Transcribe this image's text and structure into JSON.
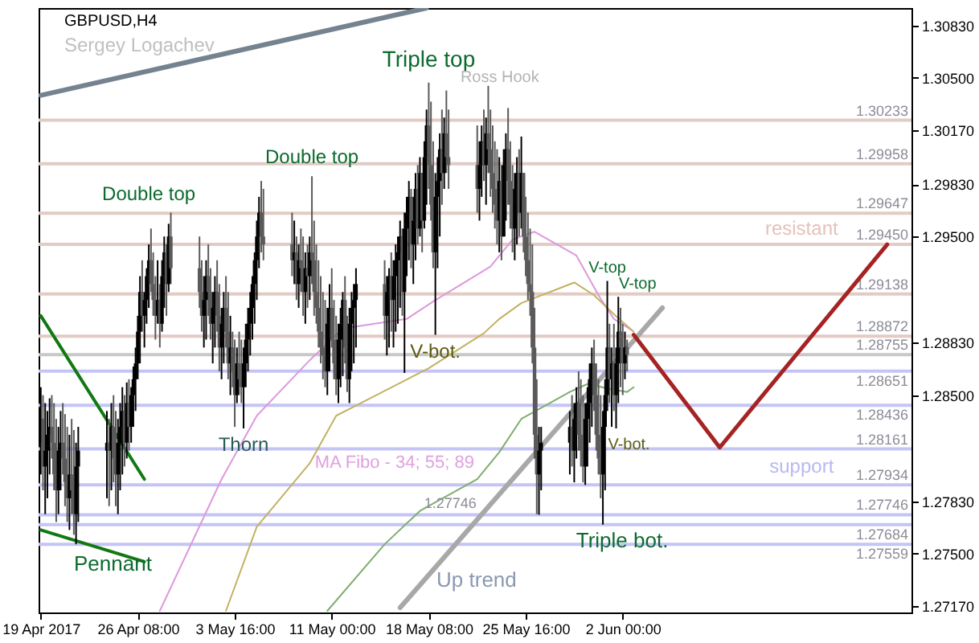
{
  "chart_data": {
    "type": "candlestick",
    "title": "GBPUSD,H4",
    "subtitle": "Sergey Logachev",
    "xlim": [
      "2017-04-18T20:00",
      "2017-06-23T20:00"
    ],
    "xticks": [
      {
        "value": "2017-04-19T00:00",
        "label": "19 Apr 2017"
      },
      {
        "value": "2017-04-26T08:00",
        "label": "26 Apr 08:00"
      },
      {
        "value": "2017-05-03T16:00",
        "label": "3 May 16:00"
      },
      {
        "value": "2017-05-11T00:00",
        "label": "11 May 00:00"
      },
      {
        "value": "2017-05-18T08:00",
        "label": "18 May 08:00"
      },
      {
        "value": "2017-05-25T16:00",
        "label": "25 May 16:00"
      },
      {
        "value": "2017-06-02T00:00",
        "label": "2 Jun 00:00"
      }
    ],
    "ylim": [
      1.2713,
      1.3094
    ],
    "yticks": [
      {
        "value": 1.3083,
        "label": "1.30830"
      },
      {
        "value": 1.305,
        "label": "1.30500"
      },
      {
        "value": 1.3017,
        "label": "1.30170"
      },
      {
        "value": 1.2983,
        "label": "1.29830"
      },
      {
        "value": 1.295,
        "label": "1.29500"
      },
      {
        "value": 1.2883,
        "label": "1.28830"
      },
      {
        "value": 1.285,
        "label": "1.28500"
      },
      {
        "value": 1.2783,
        "label": "1.27830"
      },
      {
        "value": 1.275,
        "label": "1.27500"
      },
      {
        "value": 1.2717,
        "label": "1.27170"
      }
    ],
    "x": [
      "2017-04-19T00:00",
      "2017-04-19T04:00",
      "2017-04-19T08:00",
      "2017-04-19T12:00",
      "2017-04-19T16:00",
      "2017-04-19T20:00",
      "2017-04-20T00:00",
      "2017-04-20T04:00",
      "2017-04-20T08:00",
      "2017-04-20T12:00",
      "2017-04-20T16:00",
      "2017-04-20T20:00",
      "2017-04-21T00:00",
      "2017-04-21T04:00",
      "2017-04-21T08:00",
      "2017-04-21T12:00",
      "2017-04-21T16:00",
      "2017-04-21T20:00",
      "2017-04-24T00:00",
      "2017-04-24T04:00",
      "2017-04-24T08:00",
      "2017-04-24T12:00",
      "2017-04-24T16:00",
      "2017-04-24T20:00",
      "2017-04-25T00:00",
      "2017-04-25T04:00",
      "2017-04-25T08:00",
      "2017-04-25T12:00",
      "2017-04-25T16:00",
      "2017-04-25T20:00",
      "2017-04-26T00:00",
      "2017-04-26T04:00",
      "2017-04-26T08:00",
      "2017-04-26T12:00",
      "2017-04-26T16:00",
      "2017-04-26T20:00",
      "2017-04-27T00:00",
      "2017-04-27T04:00",
      "2017-04-27T08:00",
      "2017-04-27T12:00",
      "2017-04-27T16:00",
      "2017-04-27T20:00",
      "2017-04-28T00:00",
      "2017-04-28T04:00",
      "2017-04-28T08:00",
      "2017-04-28T12:00",
      "2017-04-28T16:00",
      "2017-04-28T20:00",
      "2017-05-01T00:00",
      "2017-05-01T04:00",
      "2017-05-01T08:00",
      "2017-05-01T12:00",
      "2017-05-01T16:00",
      "2017-05-01T20:00",
      "2017-05-02T00:00",
      "2017-05-02T04:00",
      "2017-05-02T08:00",
      "2017-05-02T12:00",
      "2017-05-02T16:00",
      "2017-05-02T20:00",
      "2017-05-03T00:00",
      "2017-05-03T04:00",
      "2017-05-03T08:00",
      "2017-05-03T12:00",
      "2017-05-03T16:00",
      "2017-05-03T20:00",
      "2017-05-04T00:00",
      "2017-05-04T04:00",
      "2017-05-04T08:00",
      "2017-05-04T12:00",
      "2017-05-04T16:00",
      "2017-05-04T20:00",
      "2017-05-05T00:00",
      "2017-05-05T04:00",
      "2017-05-05T08:00",
      "2017-05-05T12:00",
      "2017-05-05T16:00",
      "2017-05-05T20:00",
      "2017-05-08T00:00",
      "2017-05-08T04:00",
      "2017-05-08T08:00",
      "2017-05-08T12:00",
      "2017-05-08T16:00",
      "2017-05-08T20:00",
      "2017-05-09T00:00",
      "2017-05-09T04:00",
      "2017-05-09T08:00",
      "2017-05-09T12:00",
      "2017-05-09T16:00",
      "2017-05-09T20:00",
      "2017-05-10T00:00",
      "2017-05-10T04:00",
      "2017-05-10T08:00",
      "2017-05-10T12:00",
      "2017-05-10T16:00",
      "2017-05-10T20:00",
      "2017-05-11T00:00",
      "2017-05-11T04:00",
      "2017-05-11T08:00",
      "2017-05-11T12:00",
      "2017-05-11T16:00",
      "2017-05-11T20:00",
      "2017-05-12T00:00",
      "2017-05-12T04:00",
      "2017-05-12T08:00",
      "2017-05-12T12:00",
      "2017-05-12T16:00",
      "2017-05-12T20:00",
      "2017-05-15T00:00",
      "2017-05-15T04:00",
      "2017-05-15T08:00",
      "2017-05-15T12:00",
      "2017-05-15T16:00",
      "2017-05-15T20:00",
      "2017-05-16T00:00",
      "2017-05-16T04:00",
      "2017-05-16T08:00",
      "2017-05-16T12:00",
      "2017-05-16T16:00",
      "2017-05-16T20:00",
      "2017-05-17T00:00",
      "2017-05-17T04:00",
      "2017-05-17T08:00",
      "2017-05-17T12:00",
      "2017-05-17T16:00",
      "2017-05-17T20:00",
      "2017-05-18T00:00",
      "2017-05-18T04:00",
      "2017-05-18T08:00",
      "2017-05-18T12:00",
      "2017-05-18T16:00",
      "2017-05-18T20:00",
      "2017-05-19T00:00",
      "2017-05-19T04:00",
      "2017-05-19T08:00",
      "2017-05-19T12:00",
      "2017-05-19T16:00",
      "2017-05-19T20:00",
      "2017-05-22T00:00",
      "2017-05-22T04:00",
      "2017-05-22T08:00",
      "2017-05-22T12:00",
      "2017-05-22T16:00",
      "2017-05-22T20:00",
      "2017-05-23T00:00",
      "2017-05-23T04:00",
      "2017-05-23T08:00",
      "2017-05-23T12:00",
      "2017-05-23T16:00",
      "2017-05-23T20:00",
      "2017-05-24T00:00",
      "2017-05-24T04:00",
      "2017-05-24T08:00",
      "2017-05-24T12:00",
      "2017-05-24T16:00",
      "2017-05-24T20:00",
      "2017-05-25T00:00",
      "2017-05-25T04:00",
      "2017-05-25T08:00",
      "2017-05-25T12:00",
      "2017-05-25T16:00",
      "2017-05-25T20:00",
      "2017-05-26T00:00",
      "2017-05-26T04:00",
      "2017-05-26T08:00",
      "2017-05-26T12:00",
      "2017-05-26T16:00",
      "2017-05-26T20:00",
      "2017-05-29T00:00",
      "2017-05-29T04:00",
      "2017-05-29T08:00",
      "2017-05-29T12:00",
      "2017-05-29T16:00",
      "2017-05-29T20:00",
      "2017-05-30T00:00",
      "2017-05-30T04:00",
      "2017-05-30T08:00",
      "2017-05-30T12:00",
      "2017-05-30T16:00",
      "2017-05-30T20:00",
      "2017-05-31T00:00",
      "2017-05-31T04:00",
      "2017-05-31T08:00",
      "2017-05-31T12:00",
      "2017-05-31T16:00",
      "2017-05-31T20:00",
      "2017-06-01T00:00",
      "2017-06-01T04:00",
      "2017-06-01T08:00",
      "2017-06-01T12:00",
      "2017-06-01T16:00",
      "2017-06-01T20:00",
      "2017-06-02T00:00",
      "2017-06-02T04:00",
      "2017-06-02T08:00"
    ],
    "ohlc": [
      [
        1.282,
        1.2855,
        1.28,
        1.2835
      ],
      [
        1.2835,
        1.285,
        1.279,
        1.2805
      ],
      [
        1.2805,
        1.2845,
        1.2775,
        1.2815
      ],
      [
        1.2815,
        1.284,
        1.2785,
        1.2825
      ],
      [
        1.2825,
        1.2848,
        1.28,
        1.283
      ],
      [
        1.283,
        1.285,
        1.281,
        1.282
      ],
      [
        1.282,
        1.2845,
        1.279,
        1.28
      ],
      [
        1.28,
        1.2835,
        1.277,
        1.279
      ],
      [
        1.279,
        1.283,
        1.2775,
        1.2815
      ],
      [
        1.2815,
        1.284,
        1.279,
        1.282
      ],
      [
        1.282,
        1.2845,
        1.28,
        1.281
      ],
      [
        1.281,
        1.2838,
        1.278,
        1.2795
      ],
      [
        1.2795,
        1.283,
        1.277,
        1.2785
      ],
      [
        1.2785,
        1.2825,
        1.2765,
        1.28
      ],
      [
        1.28,
        1.2835,
        1.2775,
        1.279
      ],
      [
        1.279,
        1.2828,
        1.2762,
        1.2775
      ],
      [
        1.2775,
        1.282,
        1.2756,
        1.2805
      ],
      [
        1.2805,
        1.283,
        1.277,
        1.2815
      ],
      [
        1.2815,
        1.284,
        1.2785,
        1.282
      ],
      [
        1.282,
        1.2835,
        1.278,
        1.2815
      ],
      [
        1.2815,
        1.2845,
        1.279,
        1.283
      ],
      [
        1.283,
        1.285,
        1.2795,
        1.281
      ],
      [
        1.281,
        1.284,
        1.278,
        1.28
      ],
      [
        1.28,
        1.2835,
        1.2775,
        1.282
      ],
      [
        1.282,
        1.2845,
        1.279,
        1.283
      ],
      [
        1.283,
        1.2855,
        1.28,
        1.284
      ],
      [
        1.284,
        1.285,
        1.2805,
        1.282
      ],
      [
        1.282,
        1.2858,
        1.281,
        1.2845
      ],
      [
        1.2845,
        1.286,
        1.2815,
        1.283
      ],
      [
        1.283,
        1.2855,
        1.282,
        1.285
      ],
      [
        1.285,
        1.2868,
        1.283,
        1.286
      ],
      [
        1.286,
        1.288,
        1.284,
        1.287
      ],
      [
        1.287,
        1.29,
        1.286,
        1.289
      ],
      [
        1.289,
        1.2925,
        1.287,
        1.2915
      ],
      [
        1.2915,
        1.2935,
        1.289,
        1.29
      ],
      [
        1.29,
        1.2915,
        1.288,
        1.291
      ],
      [
        1.291,
        1.293,
        1.2895,
        1.2925
      ],
      [
        1.2925,
        1.2945,
        1.2905,
        1.2935
      ],
      [
        1.2935,
        1.2955,
        1.2915,
        1.292
      ],
      [
        1.292,
        1.294,
        1.29,
        1.291
      ],
      [
        1.291,
        1.2925,
        1.2885,
        1.29
      ],
      [
        1.29,
        1.2935,
        1.2895,
        1.291
      ],
      [
        1.291,
        1.292,
        1.288,
        1.2895
      ],
      [
        1.2895,
        1.2935,
        1.289,
        1.2925
      ],
      [
        1.2925,
        1.295,
        1.2905,
        1.294
      ],
      [
        1.294,
        1.2945,
        1.29,
        1.292
      ],
      [
        1.292,
        1.2958,
        1.2915,
        1.295
      ],
      [
        1.295,
        1.2965,
        1.292,
        1.293
      ],
      [
        1.293,
        1.295,
        1.2905,
        1.2915
      ],
      [
        1.2915,
        1.2935,
        1.289,
        1.29
      ],
      [
        1.29,
        1.2925,
        1.288,
        1.291
      ],
      [
        1.291,
        1.2935,
        1.2885,
        1.2925
      ],
      [
        1.2925,
        1.2945,
        1.29,
        1.2915
      ],
      [
        1.2915,
        1.293,
        1.2885,
        1.2895
      ],
      [
        1.2895,
        1.2915,
        1.287,
        1.2905
      ],
      [
        1.2905,
        1.2925,
        1.288,
        1.2915
      ],
      [
        1.2915,
        1.2935,
        1.289,
        1.29
      ],
      [
        1.29,
        1.292,
        1.2865,
        1.288
      ],
      [
        1.288,
        1.2905,
        1.286,
        1.2895
      ],
      [
        1.2895,
        1.2915,
        1.287,
        1.2905
      ],
      [
        1.2905,
        1.2925,
        1.288,
        1.289
      ],
      [
        1.289,
        1.2915,
        1.286,
        1.287
      ],
      [
        1.287,
        1.29,
        1.285,
        1.288
      ],
      [
        1.288,
        1.289,
        1.2855,
        1.2865
      ],
      [
        1.2865,
        1.2885,
        1.283,
        1.285
      ],
      [
        1.285,
        1.288,
        1.2845,
        1.287
      ],
      [
        1.287,
        1.289,
        1.285,
        1.286
      ],
      [
        1.286,
        1.2885,
        1.2845,
        1.2855
      ],
      [
        1.2855,
        1.288,
        1.2829,
        1.287
      ],
      [
        1.287,
        1.2895,
        1.2855,
        1.2885
      ],
      [
        1.2885,
        1.2905,
        1.2865,
        1.2895
      ],
      [
        1.2895,
        1.2915,
        1.2875,
        1.2905
      ],
      [
        1.2905,
        1.2925,
        1.2885,
        1.292
      ],
      [
        1.292,
        1.294,
        1.2895,
        1.2935
      ],
      [
        1.2935,
        1.296,
        1.291,
        1.295
      ],
      [
        1.295,
        1.2975,
        1.293,
        1.2965
      ],
      [
        1.2965,
        1.2985,
        1.294,
        1.295
      ],
      [
        1.295,
        1.298,
        1.2935,
        1.2945
      ],
      [
        1.2945,
        1.2965,
        1.2925,
        1.2935
      ],
      [
        1.2935,
        1.296,
        1.292,
        1.294
      ],
      [
        1.294,
        1.295,
        1.291,
        1.292
      ],
      [
        1.292,
        1.2945,
        1.2905,
        1.2935
      ],
      [
        1.2935,
        1.2955,
        1.2915,
        1.293
      ],
      [
        1.293,
        1.295,
        1.29,
        1.2915
      ],
      [
        1.2915,
        1.294,
        1.2895,
        1.293
      ],
      [
        1.293,
        1.2945,
        1.2905,
        1.2925
      ],
      [
        1.2925,
        1.295,
        1.291,
        1.294
      ],
      [
        1.294,
        1.2988,
        1.292,
        1.2935
      ],
      [
        1.2935,
        1.296,
        1.29,
        1.2915
      ],
      [
        1.2915,
        1.2945,
        1.2895,
        1.2905
      ],
      [
        1.2905,
        1.2935,
        1.288,
        1.289
      ],
      [
        1.289,
        1.2925,
        1.287,
        1.288
      ],
      [
        1.288,
        1.2915,
        1.286,
        1.2875
      ],
      [
        1.2875,
        1.291,
        1.2855,
        1.2865
      ],
      [
        1.2865,
        1.2905,
        1.285,
        1.2895
      ],
      [
        1.2895,
        1.292,
        1.2865,
        1.2905
      ],
      [
        1.2905,
        1.293,
        1.288,
        1.2885
      ],
      [
        1.2885,
        1.291,
        1.286,
        1.287
      ],
      [
        1.287,
        1.29,
        1.285,
        1.286
      ],
      [
        1.286,
        1.2895,
        1.2845,
        1.2885
      ],
      [
        1.2885,
        1.2905,
        1.2855,
        1.2895
      ],
      [
        1.2895,
        1.2915,
        1.2862,
        1.291
      ],
      [
        1.291,
        1.2925,
        1.287,
        1.288
      ],
      [
        1.288,
        1.29,
        1.2852,
        1.286
      ],
      [
        1.286,
        1.2905,
        1.2845,
        1.2895
      ],
      [
        1.2895,
        1.2915,
        1.2865,
        1.2905
      ],
      [
        1.2905,
        1.292,
        1.287,
        1.291
      ],
      [
        1.291,
        1.293,
        1.288,
        1.292
      ],
      [
        1.292,
        1.2935,
        1.2885,
        1.29
      ],
      [
        1.29,
        1.2925,
        1.2875,
        1.2915
      ],
      [
        1.2915,
        1.293,
        1.288,
        1.2925
      ],
      [
        1.2925,
        1.294,
        1.289,
        1.291
      ],
      [
        1.291,
        1.2935,
        1.288,
        1.2925
      ],
      [
        1.2925,
        1.2945,
        1.289,
        1.2935
      ],
      [
        1.2935,
        1.295,
        1.2895,
        1.294
      ],
      [
        1.294,
        1.296,
        1.2905,
        1.295
      ],
      [
        1.295,
        1.2955,
        1.29,
        1.2915
      ],
      [
        1.2915,
        1.2965,
        1.2864,
        1.2955
      ],
      [
        1.2955,
        1.2975,
        1.2925,
        1.2965
      ],
      [
        1.2965,
        1.2985,
        1.2935,
        1.2975
      ],
      [
        1.2975,
        1.298,
        1.293,
        1.2945
      ],
      [
        1.2945,
        1.2975,
        1.292,
        1.296
      ],
      [
        1.296,
        1.299,
        1.2935,
        1.298
      ],
      [
        1.298,
        1.2995,
        1.2945,
        1.2955
      ],
      [
        1.2955,
        1.3,
        1.295,
        1.299
      ],
      [
        1.299,
        1.299,
        1.294,
        1.296
      ],
      [
        1.296,
        1.301,
        1.2955,
        1.3
      ],
      [
        1.3,
        1.303,
        1.297,
        1.302
      ],
      [
        1.302,
        1.3047,
        1.298,
        1.2995
      ],
      [
        1.2995,
        1.3035,
        1.296,
        1.297
      ],
      [
        1.297,
        1.301,
        1.293,
        1.294
      ],
      [
        1.294,
        1.299,
        1.2888,
        1.2975
      ],
      [
        1.2975,
        1.3,
        1.293,
        1.2985
      ],
      [
        1.2985,
        1.3015,
        1.295,
        1.3005
      ],
      [
        1.3005,
        1.303,
        1.297,
        1.299
      ],
      [
        1.299,
        1.3025,
        1.298,
        1.3015
      ],
      [
        1.3015,
        1.3042,
        1.299,
        1.3
      ],
      [
        1.3,
        1.303,
        1.298,
        1.2995
      ],
      [
        1.2995,
        1.302,
        1.2965,
        1.298
      ],
      [
        1.298,
        1.301,
        1.296,
        1.2995
      ],
      [
        1.2995,
        1.302,
        1.2975,
        1.301
      ],
      [
        1.301,
        1.303,
        1.2985,
        1.2995
      ],
      [
        1.2995,
        1.3025,
        1.297,
        1.3015
      ],
      [
        1.3015,
        1.3045,
        1.299,
        1.3005
      ],
      [
        1.3005,
        1.303,
        1.2975,
        1.299
      ],
      [
        1.299,
        1.302,
        1.2965,
        1.298
      ],
      [
        1.298,
        1.301,
        1.2955,
        1.297
      ],
      [
        1.297,
        1.3005,
        1.2945,
        1.296
      ],
      [
        1.296,
        1.3,
        1.294,
        1.2985
      ],
      [
        1.2985,
        1.2995,
        1.2935,
        1.295
      ],
      [
        1.295,
        1.3005,
        1.295,
        1.2995
      ],
      [
        1.2995,
        1.3015,
        1.296,
        1.3005
      ],
      [
        1.3005,
        1.3031,
        1.297,
        1.2985
      ],
      [
        1.2985,
        1.301,
        1.2955,
        1.297
      ],
      [
        1.297,
        1.2995,
        1.294,
        1.2955
      ],
      [
        1.2955,
        1.299,
        1.2935,
        1.298
      ],
      [
        1.298,
        1.3,
        1.2945,
        1.299
      ],
      [
        1.299,
        1.3005,
        1.295,
        1.2965
      ],
      [
        1.2965,
        1.3013,
        1.2955,
        1.299
      ],
      [
        1.299,
        1.299,
        1.294,
        1.295
      ],
      [
        1.295,
        1.2975,
        1.2925,
        1.2935
      ],
      [
        1.2935,
        1.2965,
        1.291,
        1.292
      ],
      [
        1.292,
        1.2955,
        1.29,
        1.2915
      ],
      [
        1.2915,
        1.2945,
        1.287,
        1.288
      ],
      [
        1.288,
        1.2905,
        1.281,
        1.2825
      ],
      [
        1.2825,
        1.286,
        1.2775,
        1.28
      ],
      [
        1.28,
        1.283,
        1.27746,
        1.2815
      ],
      [
        1.2815,
        1.283,
        1.279,
        1.282
      ],
      [
        1.282,
        1.284,
        1.28,
        1.283
      ],
      [
        1.283,
        1.285,
        1.2805,
        1.2815
      ],
      [
        1.2815,
        1.2845,
        1.2795,
        1.2835
      ],
      [
        1.2835,
        1.2855,
        1.281,
        1.2845
      ],
      [
        1.2845,
        1.2865,
        1.2815,
        1.2825
      ],
      [
        1.2825,
        1.286,
        1.2805,
        1.2815
      ],
      [
        1.2815,
        1.285,
        1.2795,
        1.2805
      ],
      [
        1.2805,
        1.2845,
        1.27934,
        1.2835
      ],
      [
        1.2835,
        1.2855,
        1.2805,
        1.2845
      ],
      [
        1.2845,
        1.287,
        1.282,
        1.286
      ],
      [
        1.286,
        1.288,
        1.283,
        1.287
      ],
      [
        1.287,
        1.2885,
        1.284,
        1.285
      ],
      [
        1.285,
        1.287,
        1.2815,
        1.2825
      ],
      [
        1.2825,
        1.286,
        1.28,
        1.281
      ],
      [
        1.281,
        1.285,
        1.2785,
        1.28
      ],
      [
        1.28,
        1.284,
        1.27684,
        1.283
      ],
      [
        1.283,
        1.286,
        1.279,
        1.285
      ],
      [
        1.285,
        1.2922,
        1.284,
        1.288
      ],
      [
        1.288,
        1.2895,
        1.2845,
        1.286
      ],
      [
        1.286,
        1.288,
        1.283,
        1.287
      ],
      [
        1.287,
        1.2895,
        1.284,
        1.285
      ],
      [
        1.285,
        1.288,
        1.2829,
        1.287
      ],
      [
        1.287,
        1.2912,
        1.2845,
        1.289
      ],
      [
        1.289,
        1.2905,
        1.2855,
        1.288
      ],
      [
        1.288,
        1.2895,
        1.285,
        1.287
      ],
      [
        1.287,
        1.289,
        1.286,
        1.288
      ],
      [
        1.288,
        1.2885,
        1.2865,
        1.28755
      ]
    ],
    "series": [
      {
        "type": "line",
        "color": "#75828f",
        "x": [
          "2017-04-19T00:00",
          "2017-05-18T04:00"
        ],
        "values": [
          1.3039,
          1.3094
        ]
      },
      {
        "type": "line",
        "color": "#a8a8a8",
        "x": [
          "2017-05-16T04:00",
          "2017-06-05T00:00"
        ],
        "values": [
          1.2716,
          1.2905
        ]
      },
      {
        "type": "line",
        "color": "#127812",
        "x": [
          "2017-04-19T00:00",
          "2017-04-26T20:00"
        ],
        "values": [
          1.29,
          1.2797
        ]
      },
      {
        "type": "line",
        "color": "#127812",
        "x": [
          "2017-04-19T00:00",
          "2017-04-26T20:00"
        ],
        "values": [
          1.2765,
          1.2745
        ]
      },
      {
        "type": "line",
        "color": "#dd99dd",
        "x": [
          "2017-04-28T00:00",
          "2017-05-02T16:00",
          "2017-05-05T08:00",
          "2017-05-09T08:00",
          "2017-05-11T20:00",
          "2017-05-16T16:00",
          "2017-05-18T16:00",
          "2017-05-23T00:00",
          "2017-05-24T16:00",
          "2017-05-26T08:00",
          "2017-05-29T12:00",
          "2017-05-31T04:00",
          "2017-06-01T08:00",
          "2017-06-02T16:00"
        ],
        "values": [
          1.2714,
          1.2797,
          1.2837,
          1.2872,
          1.2892,
          1.2898,
          1.2909,
          1.2931,
          1.2948,
          1.2953,
          1.2938,
          1.2913,
          1.2898,
          1.2891
        ]
      },
      {
        "type": "line",
        "color": "#c2b263",
        "x": [
          "2017-05-03T00:00",
          "2017-05-05T08:00",
          "2017-05-09T08:00",
          "2017-05-11T08:00",
          "2017-05-16T00:00",
          "2017-05-18T08:00",
          "2017-05-22T12:00",
          "2017-05-23T16:00",
          "2017-05-25T08:00",
          "2017-05-29T08:00",
          "2017-05-30T20:00",
          "2017-06-01T08:00",
          "2017-06-02T20:00"
        ],
        "values": [
          1.2714,
          1.2767,
          1.2807,
          1.2837,
          1.2857,
          1.2867,
          1.2889,
          1.2898,
          1.2908,
          1.2921,
          1.2913,
          1.2901,
          1.289
        ]
      },
      {
        "type": "line",
        "color": "#7fae6f",
        "x": [
          "2017-05-10T16:00",
          "2017-05-15T00:00",
          "2017-05-17T16:00",
          "2017-05-22T00:00",
          "2017-05-23T16:00",
          "2017-05-25T08:00",
          "2017-05-29T00:00",
          "2017-05-30T08:00",
          "2017-06-01T00:00",
          "2017-06-02T08:00",
          "2017-06-02T20:00"
        ],
        "values": [
          1.2714,
          1.2756,
          1.2777,
          1.2797,
          1.2814,
          1.2835,
          1.2852,
          1.2857,
          1.2854,
          1.2852,
          1.2855
        ]
      },
      {
        "type": "line",
        "color": "#a52323",
        "x": [
          "2017-06-02T20:00",
          "2017-06-09T08:00",
          "2017-06-22T00:00"
        ],
        "values": [
          1.2888,
          1.2817,
          1.2945
        ]
      }
    ],
    "ref_lines": [
      {
        "axis": "y",
        "value": 1.30233,
        "label": "1.30233",
        "color": "#e2cbc4"
      },
      {
        "axis": "y",
        "value": 1.29958,
        "label": "1.29958",
        "color": "#e2cbc4"
      },
      {
        "axis": "y",
        "value": 1.29647,
        "label": "1.29647",
        "color": "#e2cbc4"
      },
      {
        "axis": "y",
        "value": 1.2945,
        "label": "1.29450",
        "color": "#e2cbc4"
      },
      {
        "axis": "y",
        "value": 1.29138,
        "label": "1.29138",
        "color": "#e2cbc4"
      },
      {
        "axis": "y",
        "value": 1.28872,
        "label": "1.28872",
        "color": "#e2cbc4"
      },
      {
        "axis": "y",
        "value": 1.28755,
        "label": "1.28755",
        "color": "#c8c8c8"
      },
      {
        "axis": "y",
        "value": 1.28651,
        "label": "1.28651",
        "color": "#c4c4f6"
      },
      {
        "axis": "y",
        "value": 1.28436,
        "label": "1.28436",
        "color": "#c4c4f6"
      },
      {
        "axis": "y",
        "value": 1.28161,
        "label": "1.28161",
        "color": "#c4c4f6"
      },
      {
        "axis": "y",
        "value": 1.27934,
        "label": "1.27934",
        "color": "#c4c4f6"
      },
      {
        "axis": "y",
        "value": 1.27746,
        "label": "1.27746",
        "color": "#c4c4f6"
      },
      {
        "axis": "y",
        "value": 1.27684,
        "label": "1.27684",
        "color": "#c4c4f6"
      },
      {
        "axis": "y",
        "value": 1.27559,
        "label": "1.27559",
        "color": "#c4c4f6"
      }
    ],
    "annotations": [
      {
        "text": "Double top",
        "x": "2017-04-27T04:00",
        "y": 1.2965
      },
      {
        "text": "Double top",
        "x": "2017-05-09T12:00",
        "y": 1.2988
      },
      {
        "text": "Triple top",
        "x": "2017-05-18T08:00",
        "y": 1.3047
      },
      "Ross Hook",
      {
        "text": "V-bot.",
        "x": "2017-05-18T20:00",
        "y": 1.2888
      },
      {
        "text": "Thorn",
        "x": "2017-05-04T08:00",
        "y": 1.2829
      },
      "MA Fibo - 34; 55; 89",
      "Pennant",
      "Up trend",
      {
        "text": "Triple bot.",
        "x": "2017-05-31T12:00",
        "y": 1.27684
      },
      {
        "text": "V-top",
        "x": "2017-05-31T20:00",
        "y": 1.2922
      },
      {
        "text": "V-top",
        "x": "2017-06-01T16:00",
        "y": 1.2912
      },
      {
        "text": "V-bot.",
        "x": "2017-06-01T12:00",
        "y": 1.2829
      },
      "resistant",
      "support",
      "1.27746"
    ]
  }
}
